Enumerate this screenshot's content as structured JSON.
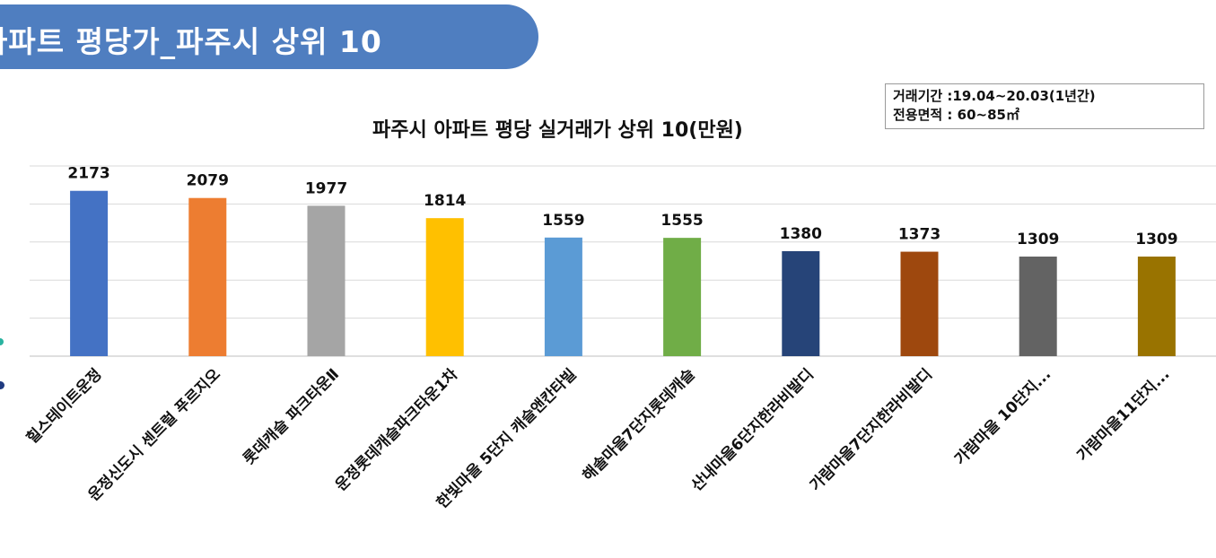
{
  "header": {
    "title": "아파트 평당가_파주시 상위 10"
  },
  "info": {
    "line1": "거래기간 :19.04~20.03(1년간)",
    "line2": "전용면적 : 60~85㎡"
  },
  "chart_data": {
    "type": "bar",
    "title": "파주시 아파트 평당 실거래가 상위 10(만원)",
    "categories": [
      "힐스테이트운정",
      "운정신도시 센트럴 푸르지오",
      "롯데캐슬 파크타운Ⅱ",
      "운정롯데캐슬파크타운1차",
      "한빛마을 5단지 캐슬앤칸타빌",
      "해솔마을7단지롯데캐슬",
      "산내마을6단지한라비발디",
      "가람마을7단지한라비발디",
      "가람마을 10단지...",
      "가람마을11단지..."
    ],
    "values": [
      2173,
      2079,
      1977,
      1814,
      1559,
      1555,
      1380,
      1373,
      1309,
      1309
    ],
    "colors": [
      "#4472c4",
      "#ed7d31",
      "#a5a5a5",
      "#ffc000",
      "#5b9bd5",
      "#70ad47",
      "#264478",
      "#9e480e",
      "#636363",
      "#997300"
    ],
    "ylim": [
      0,
      2500
    ],
    "grid": true,
    "xlabel": "",
    "ylabel": ""
  }
}
